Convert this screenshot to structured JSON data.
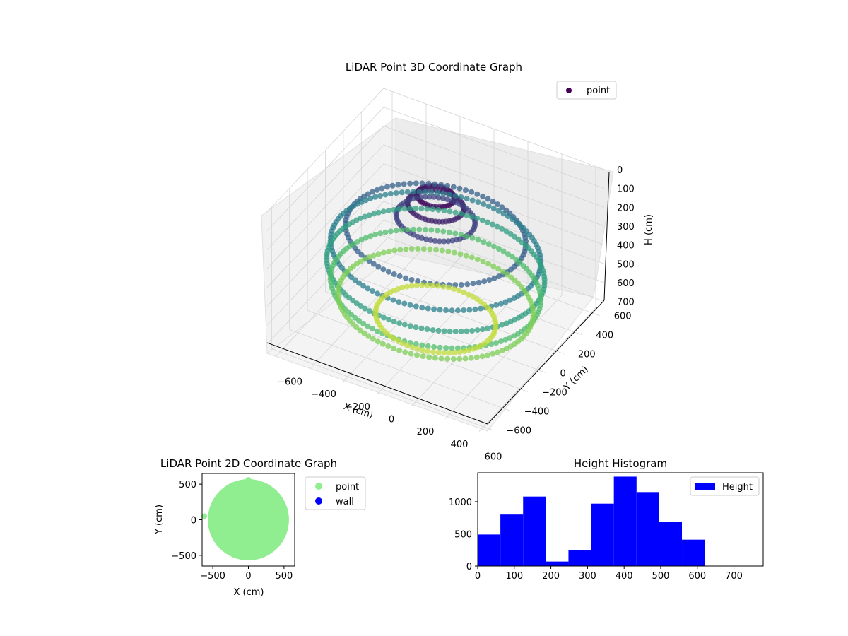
{
  "colors": {
    "point_3d_legend": "#440154",
    "point_2d": "#90ee90",
    "wall_2d": "#0000ff",
    "histogram": "#0000ff",
    "colormap": "viridis"
  },
  "chart_data": [
    {
      "type": "scatter",
      "dimensions": 3,
      "title": "LiDAR Point 3D Coordinate Graph",
      "xlabel": "X (cm)",
      "ylabel": "Y (cm)",
      "zlabel": "H (cm)",
      "xlim": [
        -650,
        650
      ],
      "ylim": [
        -650,
        650
      ],
      "zlim": [
        0,
        750
      ],
      "z_axis_inverted": true,
      "x_ticks": [
        "−600",
        "−400",
        "−200",
        "0",
        "200",
        "400",
        "600"
      ],
      "y_ticks": [
        "−600",
        "−400",
        "−200",
        "0",
        "200",
        "400",
        "600"
      ],
      "z_ticks": [
        "0",
        "100",
        "200",
        "300",
        "400",
        "500",
        "600",
        "700"
      ],
      "grid": true,
      "legend": [
        "point"
      ],
      "legend_position": "top-right",
      "color_by": "H (cm)",
      "series": [
        {
          "name": "point",
          "description_shape": "ring of points around the origin; walls near the top (low H), floor sheet at high H",
          "rings": [
            {
              "h": 30,
              "radius": 100,
              "count": 40
            },
            {
              "h": 80,
              "radius": 150,
              "count": 50
            },
            {
              "h": 150,
              "radius": 210,
              "count": 55
            },
            {
              "h": 230,
              "radius": 480,
              "count": 90
            },
            {
              "h": 320,
              "radius": 560,
              "count": 110
            },
            {
              "h": 420,
              "radius": 580,
              "count": 120
            },
            {
              "h": 520,
              "radius": 560,
              "count": 110
            },
            {
              "h": 600,
              "radius": 520,
              "count": 100
            },
            {
              "h": 680,
              "radius": 320,
              "count": 70
            }
          ]
        }
      ]
    },
    {
      "type": "scatter",
      "dimensions": 2,
      "title": "LiDAR Point 2D Coordinate Graph",
      "xlabel": "X (cm)",
      "ylabel": "Y (cm)",
      "xlim": [
        -650,
        650
      ],
      "ylim": [
        -650,
        650
      ],
      "x_ticks": [
        "−500",
        "0",
        "500"
      ],
      "y_ticks": [
        "500",
        "0",
        "−500"
      ],
      "legend": [
        "point",
        "wall"
      ],
      "legend_position": "outside-right",
      "series": [
        {
          "name": "point",
          "shape": "filled disc",
          "center": [
            0,
            0
          ],
          "radius_x": 570,
          "radius_y": 570,
          "outliers": [
            [
              -620,
              50
            ],
            [
              0,
              560
            ]
          ]
        },
        {
          "name": "wall",
          "points": []
        }
      ]
    },
    {
      "type": "bar",
      "subtype": "histogram",
      "title": "Height Histogram",
      "xlabel": "",
      "ylabel": "",
      "xlim": [
        0,
        780
      ],
      "ylim": [
        0,
        1450
      ],
      "x_ticks": [
        "0",
        "100",
        "200",
        "300",
        "400",
        "500",
        "600",
        "700"
      ],
      "y_ticks": [
        "0",
        "500",
        "1000"
      ],
      "legend": [
        "Height"
      ],
      "legend_position": "top-right",
      "bin_edges": [
        0,
        62,
        124,
        186,
        248,
        310,
        372,
        434,
        496,
        558,
        620
      ],
      "values": [
        490,
        800,
        1080,
        70,
        250,
        970,
        1390,
        1150,
        690,
        410
      ]
    }
  ]
}
